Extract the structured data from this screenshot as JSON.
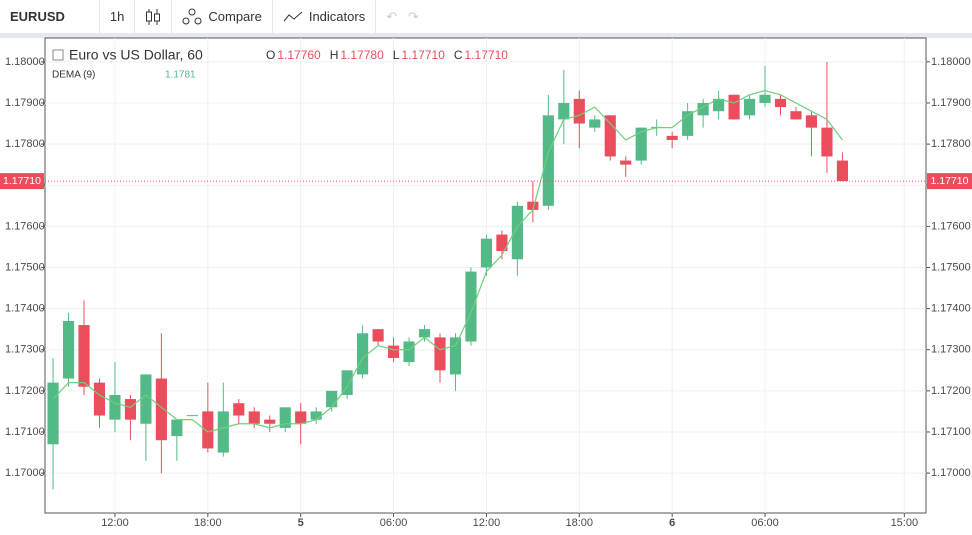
{
  "toolbar": {
    "symbol": "EURUSD",
    "interval": "1h",
    "compare": "Compare",
    "indicators": "Indicators"
  },
  "chart_data": {
    "type": "candlestick",
    "title": "Euro vs US Dollar, 60",
    "ohlc_legend": [
      {
        "key": "O",
        "value": 1.1776,
        "label": "1.17760"
      },
      {
        "key": "H",
        "value": 1.1778,
        "label": "1.17780"
      },
      {
        "key": "L",
        "value": 1.1771,
        "label": "1.17710"
      },
      {
        "key": "C",
        "value": 1.1771,
        "label": "1.17710"
      }
    ],
    "up_color": "#53b987",
    "down_color": "#eb4d5c",
    "x": [
      8,
      9,
      10,
      11,
      12,
      13,
      14,
      15,
      16,
      17,
      18,
      19,
      20,
      21,
      22,
      23,
      24,
      25,
      26,
      27,
      28,
      29,
      30,
      31,
      32,
      33,
      34,
      35,
      36,
      37,
      38,
      39,
      40,
      41,
      42,
      43,
      44,
      45,
      46,
      47,
      48,
      49,
      50,
      51,
      52,
      53,
      54,
      55,
      56,
      57,
      58,
      59
    ],
    "open": [
      1.1707,
      1.1723,
      1.1736,
      1.1722,
      1.1713,
      1.1718,
      1.1712,
      1.1723,
      1.1709,
      1.1714,
      1.1715,
      1.1705,
      1.1717,
      1.1715,
      1.1713,
      1.1711,
      1.1715,
      1.1713,
      1.1716,
      1.1719,
      1.1724,
      1.1735,
      1.1731,
      1.1727,
      1.1733,
      1.1733,
      1.1724,
      1.1732,
      1.175,
      1.1758,
      1.1752,
      1.1766,
      1.1765,
      1.1786,
      1.1791,
      1.1784,
      1.1787,
      1.1776,
      1.1776,
      1.1784,
      1.1782,
      1.1782,
      1.1787,
      1.1788,
      1.1792,
      1.1787,
      1.179,
      1.1791,
      1.1788,
      1.1787,
      1.1784,
      1.1776
    ],
    "high": [
      1.1728,
      1.1739,
      1.1742,
      1.1723,
      1.1727,
      1.1719,
      1.1724,
      1.1734,
      1.1713,
      1.1714,
      1.1722,
      1.1722,
      1.1718,
      1.1716,
      1.1714,
      1.1716,
      1.1717,
      1.1716,
      1.172,
      1.1725,
      1.1736,
      1.1735,
      1.1733,
      1.1733,
      1.1736,
      1.1734,
      1.1734,
      1.175,
      1.1758,
      1.1759,
      1.1766,
      1.1771,
      1.1792,
      1.1798,
      1.1793,
      1.1787,
      1.1787,
      1.1777,
      1.1784,
      1.1786,
      1.1783,
      1.179,
      1.1791,
      1.1793,
      1.1792,
      1.1792,
      1.1799,
      1.1792,
      1.1789,
      1.1788,
      1.18,
      1.1778
    ],
    "low": [
      1.1696,
      1.1721,
      1.1719,
      1.1711,
      1.171,
      1.1708,
      1.1703,
      1.17,
      1.1703,
      1.1714,
      1.1705,
      1.1704,
      1.1712,
      1.1711,
      1.171,
      1.171,
      1.1707,
      1.1712,
      1.1715,
      1.1718,
      1.1723,
      1.1731,
      1.1727,
      1.1726,
      1.1732,
      1.1722,
      1.172,
      1.1731,
      1.1748,
      1.1752,
      1.1748,
      1.1761,
      1.1764,
      1.178,
      1.1779,
      1.1783,
      1.1776,
      1.1772,
      1.1775,
      1.1782,
      1.1779,
      1.1781,
      1.1784,
      1.1786,
      1.1786,
      1.1786,
      1.1789,
      1.1787,
      1.1786,
      1.1777,
      1.1773,
      1.1771
    ],
    "close": [
      1.1722,
      1.1737,
      1.1721,
      1.1714,
      1.1719,
      1.1713,
      1.1724,
      1.1708,
      1.1713,
      1.17141,
      1.1706,
      1.1715,
      1.1714,
      1.1712,
      1.1712,
      1.1716,
      1.1712,
      1.1715,
      1.172,
      1.1725,
      1.1734,
      1.1732,
      1.1728,
      1.1732,
      1.1735,
      1.1725,
      1.1733,
      1.1749,
      1.1757,
      1.1754,
      1.1765,
      1.1764,
      1.1787,
      1.179,
      1.1785,
      1.1786,
      1.1777,
      1.1775,
      1.1784,
      1.17842,
      1.1781,
      1.1788,
      1.179,
      1.1791,
      1.1786,
      1.1791,
      1.1792,
      1.1789,
      1.1786,
      1.1784,
      1.1777,
      1.1771
    ],
    "indicator": {
      "name": "DEMA (9)",
      "color": "#6fcf7c",
      "last_value": 1.1781,
      "values": [
        1.1718,
        1.1722,
        1.1722,
        1.1719,
        1.1717,
        1.1716,
        1.1719,
        1.1716,
        1.1713,
        1.1713,
        1.171,
        1.1711,
        1.1712,
        1.1712,
        1.1711,
        1.1712,
        1.1712,
        1.1713,
        1.1716,
        1.1721,
        1.1728,
        1.1731,
        1.173,
        1.173,
        1.1733,
        1.173,
        1.1731,
        1.1739,
        1.1749,
        1.1753,
        1.176,
        1.1764,
        1.1778,
        1.1786,
        1.1787,
        1.1789,
        1.1785,
        1.1781,
        1.1783,
        1.1784,
        1.1784,
        1.1787,
        1.1789,
        1.1791,
        1.179,
        1.1792,
        1.1793,
        1.1792,
        1.179,
        1.1788,
        1.1786,
        1.1781
      ]
    },
    "last_price": {
      "value": 1.1771,
      "label": "1.17710",
      "color": "#eb4d5c"
    },
    "xlim": [
      7.48,
      64.4
    ],
    "xticks": [
      {
        "value": 12,
        "label": "12:00"
      },
      {
        "value": 18,
        "label": "18:00"
      },
      {
        "value": 24,
        "label": "5"
      },
      {
        "value": 30,
        "label": "06:00"
      },
      {
        "value": 36,
        "label": "12:00"
      },
      {
        "value": 42,
        "label": "18:00"
      },
      {
        "value": 48,
        "label": "6"
      },
      {
        "value": 54,
        "label": "06:00"
      },
      {
        "value": 63,
        "label": "15:00"
      }
    ],
    "ylim": [
      1.16903,
      1.18058
    ],
    "yticks": [
      {
        "value": 1.17,
        "label": "1.17000"
      },
      {
        "value": 1.171,
        "label": "1.17100"
      },
      {
        "value": 1.172,
        "label": "1.17200"
      },
      {
        "value": 1.173,
        "label": "1.17300"
      },
      {
        "value": 1.174,
        "label": "1.17400"
      },
      {
        "value": 1.175,
        "label": "1.17500"
      },
      {
        "value": 1.176,
        "label": "1.17600"
      },
      {
        "value": 1.177,
        "label": "1.17700"
      },
      {
        "value": 1.178,
        "label": "1.17800"
      },
      {
        "value": 1.179,
        "label": "1.17900"
      },
      {
        "value": 1.18,
        "label": "1.18000"
      }
    ],
    "grid": true
  }
}
